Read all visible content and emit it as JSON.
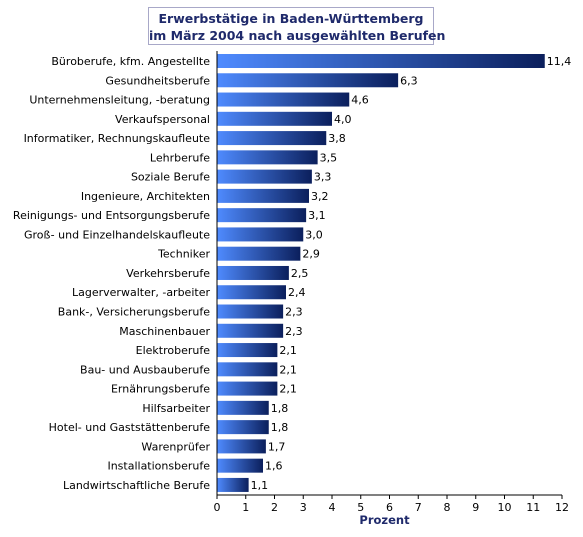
{
  "chart_data": {
    "type": "bar",
    "orientation": "horizontal",
    "title_lines": [
      "Erwerbstätige in Baden-Württemberg",
      "im März 2004 nach ausgewählten Berufen"
    ],
    "xlabel": "Prozent",
    "ylabel": "",
    "xlim": [
      0,
      12
    ],
    "xticks": [
      0,
      1,
      2,
      3,
      4,
      5,
      6,
      7,
      8,
      9,
      10,
      11,
      12
    ],
    "grid": false,
    "categories": [
      "Büroberufe, kfm. Angestellte",
      "Gesundheitsberufe",
      "Unternehmensleitung, -beratung",
      "Verkaufspersonal",
      "Informatiker, Rechnungskaufleute",
      "Lehrberufe",
      "Soziale Berufe",
      "Ingenieure, Architekten",
      "Reinigungs- und Entsorgungsberufe",
      "Groß- und Einzelhandelskaufleute",
      "Techniker",
      "Verkehrsberufe",
      "Lagerverwalter, -arbeiter",
      "Bank-, Versicherungsberufe",
      "Maschinenbauer",
      "Elektroberufe",
      "Bau- und Ausbauberufe",
      "Ernährungsberufe",
      "Hilfsarbeiter",
      "Hotel- und Gaststättenberufe",
      "Warenprüfer",
      "Installationsberufe",
      "Landwirtschaftliche Berufe"
    ],
    "values": [
      11.4,
      6.3,
      4.6,
      4.0,
      3.8,
      3.5,
      3.3,
      3.2,
      3.1,
      3.0,
      2.9,
      2.5,
      2.4,
      2.3,
      2.3,
      2.1,
      2.1,
      2.1,
      1.8,
      1.8,
      1.7,
      1.6,
      1.1
    ],
    "value_labels": [
      "11,4",
      "6,3",
      "4,6",
      "4,0",
      "3,8",
      "3,5",
      "3,3",
      "3,2",
      "3,1",
      "3,0",
      "2,9",
      "2,5",
      "2,4",
      "2,3",
      "2,3",
      "2,1",
      "2,1",
      "2,1",
      "1,8",
      "1,8",
      "1,7",
      "1,6",
      "1,1"
    ],
    "colors": {
      "bar_light": "#4f8bff",
      "bar_dark": "#0b1f5c",
      "title_text": "#1f2a6b",
      "axis": "#000000"
    }
  }
}
